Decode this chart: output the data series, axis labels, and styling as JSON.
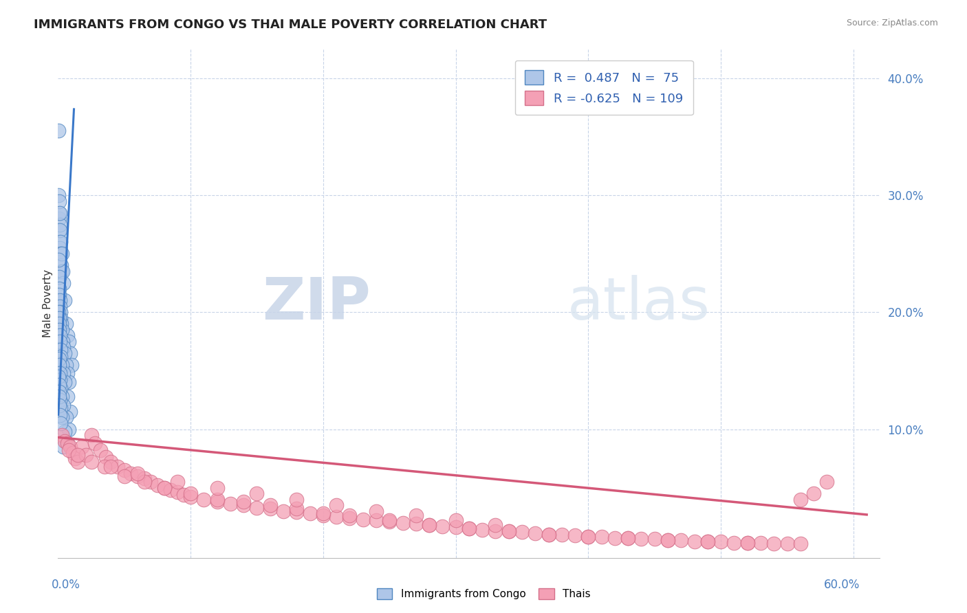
{
  "title": "IMMIGRANTS FROM CONGO VS THAI MALE POVERTY CORRELATION CHART",
  "source": "Source: ZipAtlas.com",
  "ylabel": "Male Poverty",
  "xlim": [
    0.0,
    0.62
  ],
  "ylim": [
    -0.01,
    0.425
  ],
  "yticks": [
    0.0,
    0.1,
    0.2,
    0.3,
    0.4
  ],
  "congo_color": "#aec6e8",
  "thai_color": "#f4a0b5",
  "congo_edge_color": "#4f86c0",
  "thai_edge_color": "#d4708a",
  "congo_line_color": "#3a78c9",
  "thai_line_color": "#d45878",
  "background_color": "#ffffff",
  "grid_color": "#c8d4e8",
  "watermark_zip": "ZIP",
  "watermark_atlas": "atlas",
  "legend_r1_label": "R =  0.487   N =  75",
  "legend_r2_label": "R = -0.625   N = 109",
  "congo_scatter_x": [
    0.0003,
    0.0005,
    0.0006,
    0.0007,
    0.0008,
    0.0009,
    0.001,
    0.0012,
    0.0014,
    0.0015,
    0.0016,
    0.0018,
    0.002,
    0.0022,
    0.0025,
    0.003,
    0.0035,
    0.004,
    0.005,
    0.006,
    0.007,
    0.008,
    0.009,
    0.01,
    0.0005,
    0.0007,
    0.0009,
    0.0011,
    0.0013,
    0.0015,
    0.0018,
    0.002,
    0.0025,
    0.003,
    0.0035,
    0.004,
    0.005,
    0.006,
    0.007,
    0.008,
    0.0004,
    0.0006,
    0.0008,
    0.001,
    0.0012,
    0.0014,
    0.0017,
    0.002,
    0.003,
    0.004,
    0.005,
    0.007,
    0.009,
    0.0006,
    0.0009,
    0.0013,
    0.0016,
    0.002,
    0.003,
    0.004,
    0.006,
    0.008,
    0.0005,
    0.0008,
    0.001,
    0.0015,
    0.002,
    0.003,
    0.005,
    0.007,
    0.0007,
    0.001,
    0.0015,
    0.002,
    0.004
  ],
  "congo_scatter_y": [
    0.355,
    0.3,
    0.28,
    0.285,
    0.27,
    0.26,
    0.295,
    0.275,
    0.255,
    0.285,
    0.27,
    0.26,
    0.25,
    0.24,
    0.235,
    0.25,
    0.235,
    0.225,
    0.21,
    0.19,
    0.18,
    0.175,
    0.165,
    0.155,
    0.245,
    0.23,
    0.22,
    0.215,
    0.21,
    0.205,
    0.2,
    0.195,
    0.19,
    0.185,
    0.175,
    0.17,
    0.165,
    0.155,
    0.148,
    0.14,
    0.2,
    0.195,
    0.19,
    0.185,
    0.18,
    0.175,
    0.168,
    0.162,
    0.155,
    0.148,
    0.14,
    0.128,
    0.115,
    0.16,
    0.155,
    0.148,
    0.142,
    0.135,
    0.128,
    0.12,
    0.11,
    0.1,
    0.145,
    0.138,
    0.132,
    0.125,
    0.118,
    0.11,
    0.098,
    0.088,
    0.128,
    0.12,
    0.112,
    0.105,
    0.085
  ],
  "thai_scatter_x": [
    0.003,
    0.005,
    0.007,
    0.009,
    0.011,
    0.013,
    0.015,
    0.018,
    0.021,
    0.025,
    0.028,
    0.032,
    0.036,
    0.04,
    0.045,
    0.05,
    0.055,
    0.06,
    0.065,
    0.07,
    0.075,
    0.08,
    0.085,
    0.09,
    0.095,
    0.1,
    0.11,
    0.12,
    0.13,
    0.14,
    0.15,
    0.16,
    0.17,
    0.18,
    0.19,
    0.2,
    0.21,
    0.22,
    0.23,
    0.24,
    0.25,
    0.26,
    0.27,
    0.28,
    0.29,
    0.3,
    0.31,
    0.32,
    0.33,
    0.34,
    0.35,
    0.36,
    0.37,
    0.38,
    0.39,
    0.4,
    0.41,
    0.42,
    0.43,
    0.44,
    0.45,
    0.46,
    0.47,
    0.48,
    0.49,
    0.5,
    0.51,
    0.52,
    0.53,
    0.54,
    0.55,
    0.56,
    0.008,
    0.015,
    0.025,
    0.035,
    0.05,
    0.065,
    0.08,
    0.1,
    0.12,
    0.14,
    0.16,
    0.18,
    0.2,
    0.22,
    0.25,
    0.28,
    0.31,
    0.34,
    0.37,
    0.4,
    0.43,
    0.46,
    0.49,
    0.52,
    0.04,
    0.06,
    0.09,
    0.12,
    0.15,
    0.18,
    0.21,
    0.24,
    0.27,
    0.3,
    0.33,
    0.58,
    0.57,
    0.56
  ],
  "thai_scatter_y": [
    0.095,
    0.09,
    0.088,
    0.085,
    0.08,
    0.075,
    0.072,
    0.085,
    0.078,
    0.095,
    0.088,
    0.082,
    0.076,
    0.072,
    0.068,
    0.065,
    0.062,
    0.06,
    0.058,
    0.055,
    0.052,
    0.05,
    0.048,
    0.046,
    0.044,
    0.042,
    0.04,
    0.038,
    0.036,
    0.035,
    0.033,
    0.032,
    0.03,
    0.029,
    0.028,
    0.026,
    0.025,
    0.024,
    0.023,
    0.022,
    0.021,
    0.02,
    0.019,
    0.018,
    0.017,
    0.016,
    0.015,
    0.014,
    0.013,
    0.013,
    0.012,
    0.011,
    0.01,
    0.01,
    0.009,
    0.008,
    0.008,
    0.007,
    0.007,
    0.006,
    0.006,
    0.005,
    0.005,
    0.004,
    0.004,
    0.004,
    0.003,
    0.003,
    0.003,
    0.002,
    0.002,
    0.002,
    0.082,
    0.078,
    0.072,
    0.068,
    0.06,
    0.055,
    0.05,
    0.045,
    0.04,
    0.038,
    0.035,
    0.032,
    0.028,
    0.026,
    0.022,
    0.018,
    0.015,
    0.013,
    0.01,
    0.008,
    0.007,
    0.005,
    0.004,
    0.003,
    0.068,
    0.062,
    0.055,
    0.05,
    0.045,
    0.04,
    0.035,
    0.03,
    0.026,
    0.022,
    0.018,
    0.055,
    0.045,
    0.04
  ]
}
